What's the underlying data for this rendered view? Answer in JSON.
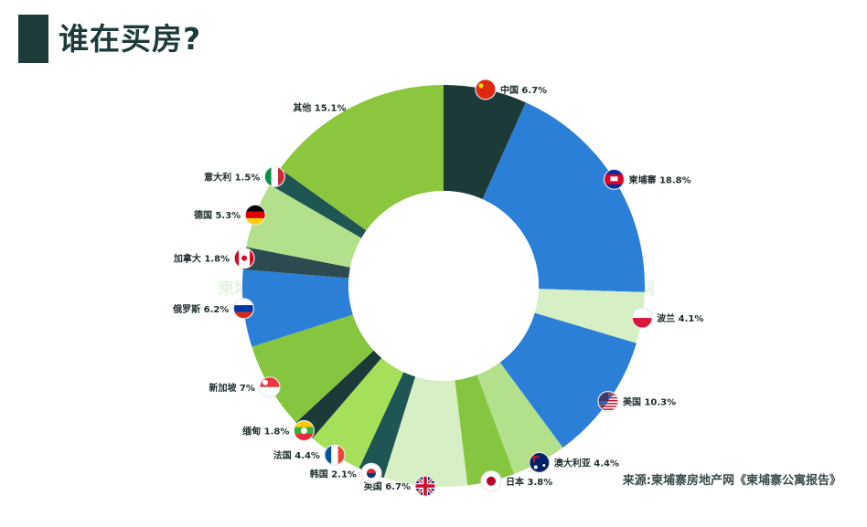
{
  "header": {
    "title": "谁在买房?"
  },
  "source": {
    "text": "来源:柬埔寨房地产网《柬埔寨公寓报告》"
  },
  "watermark": {
    "text": "柬埔寨房地产网"
  },
  "chart_data": {
    "type": "pie",
    "title": "谁在买房?",
    "slices": [
      {
        "label": "中国",
        "pct": "6.7%",
        "value": 6.7,
        "color": "#1b3a38",
        "flag": "cn-flag-icon"
      },
      {
        "label": "柬埔寨",
        "pct": "18.8%",
        "value": 18.8,
        "color": "#2b7fd6",
        "flag": "kh-flag-icon"
      },
      {
        "label": "波兰",
        "pct": "4.1%",
        "value": 4.1,
        "color": "#d6efc4",
        "flag": "pl-flag-icon"
      },
      {
        "label": "美国",
        "pct": "10.3%",
        "value": 10.3,
        "color": "#2b7fd6",
        "flag": "us-flag-icon"
      },
      {
        "label": "澳大利亚",
        "pct": "4.4%",
        "value": 4.4,
        "color": "#b3e08a",
        "flag": "au-flag-icon"
      },
      {
        "label": "日本",
        "pct": "3.8%",
        "value": 3.8,
        "color": "#86c540",
        "flag": "jp-flag-icon"
      },
      {
        "label": "英国",
        "pct": "6.7%",
        "value": 6.7,
        "color": "#d6efc4",
        "flag": "uk-flag-icon"
      },
      {
        "label": "韩国",
        "pct": "2.1%",
        "value": 2.1,
        "color": "#1f5553",
        "flag": "kr-flag-icon"
      },
      {
        "label": "法国",
        "pct": "4.4%",
        "value": 4.4,
        "color": "#a6e05a",
        "flag": "fr-flag-icon"
      },
      {
        "label": "缅甸",
        "pct": "1.8%",
        "value": 1.8,
        "color": "#1b3a38",
        "flag": "mm-flag-icon"
      },
      {
        "label": "新加坡",
        "pct": "7%",
        "value": 7.0,
        "color": "#86c540",
        "flag": "sg-flag-icon"
      },
      {
        "label": "俄罗斯",
        "pct": "6.2%",
        "value": 6.2,
        "color": "#2b7fd6",
        "flag": "ru-flag-icon"
      },
      {
        "label": "加拿大",
        "pct": "1.8%",
        "value": 1.8,
        "color": "#2c4a4f",
        "flag": "ca-flag-icon"
      },
      {
        "label": "德国",
        "pct": "5.3%",
        "value": 5.3,
        "color": "#b3e08a",
        "flag": "de-flag-icon"
      },
      {
        "label": "意大利",
        "pct": "1.5%",
        "value": 1.5,
        "color": "#1f5553",
        "flag": "it-flag-icon"
      },
      {
        "label": "其他",
        "pct": "15.1%",
        "value": 15.1,
        "color": "#8cc63f",
        "flag": ""
      }
    ]
  }
}
